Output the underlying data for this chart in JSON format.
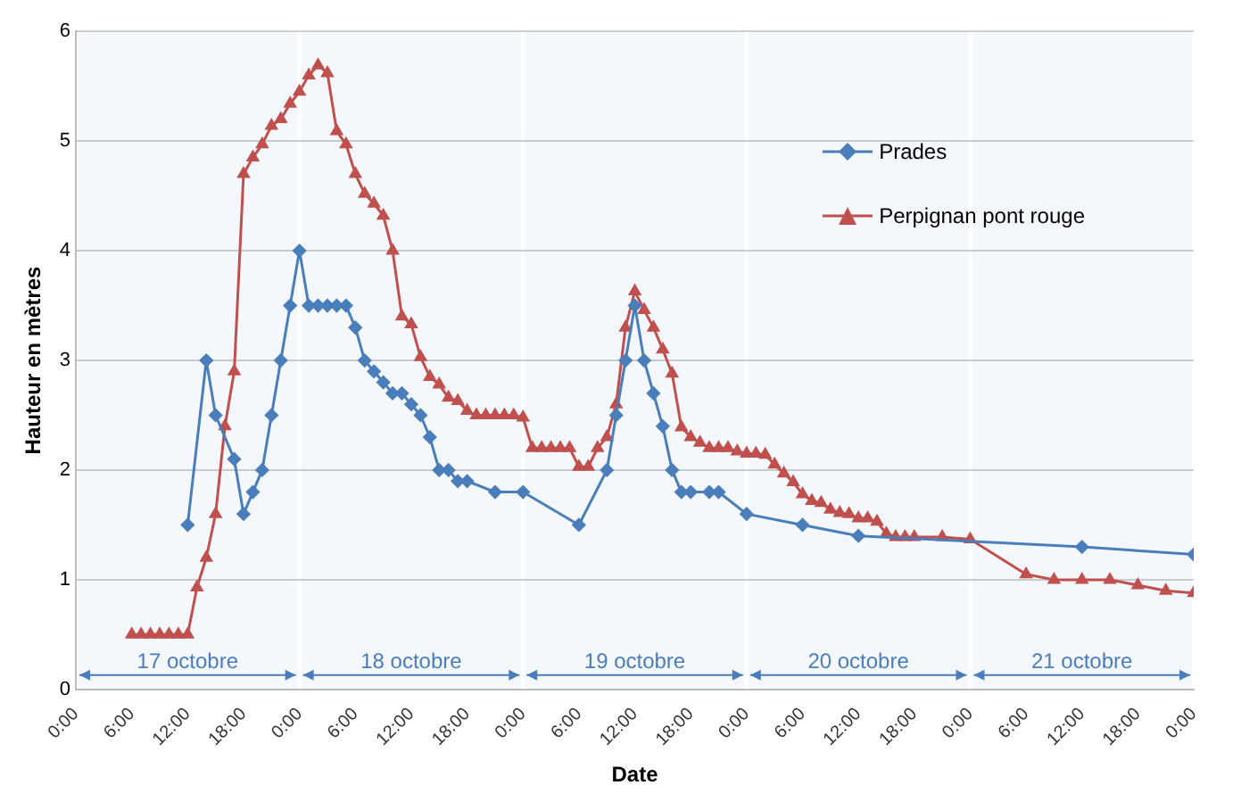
{
  "chart_data": {
    "type": "line",
    "xlabel": "Date",
    "ylabel": "Hauteur en mètres",
    "xlim": [
      "--10-17T00:00",
      "--10-22T00:00"
    ],
    "xticks": [
      {
        "value": "--10-17T00:00",
        "label": "0:00"
      },
      {
        "value": "--10-17T06:00",
        "label": "6:00"
      },
      {
        "value": "--10-17T12:00",
        "label": "12:00"
      },
      {
        "value": "--10-17T18:00",
        "label": "18:00"
      },
      {
        "value": "--10-18T00:00",
        "label": "0:00"
      },
      {
        "value": "--10-18T06:00",
        "label": "6:00"
      },
      {
        "value": "--10-18T12:00",
        "label": "12:00"
      },
      {
        "value": "--10-18T18:00",
        "label": "18:00"
      },
      {
        "value": "--10-19T00:00",
        "label": "0:00"
      },
      {
        "value": "--10-19T06:00",
        "label": "6:00"
      },
      {
        "value": "--10-19T12:00",
        "label": "12:00"
      },
      {
        "value": "--10-19T18:00",
        "label": "18:00"
      },
      {
        "value": "--10-20T00:00",
        "label": "0:00"
      },
      {
        "value": "--10-20T06:00",
        "label": "6:00"
      },
      {
        "value": "--10-20T12:00",
        "label": "12:00"
      },
      {
        "value": "--10-20T18:00",
        "label": "18:00"
      },
      {
        "value": "--10-21T00:00",
        "label": "0:00"
      },
      {
        "value": "--10-21T06:00",
        "label": "6:00"
      },
      {
        "value": "--10-21T12:00",
        "label": "12:00"
      },
      {
        "value": "--10-21T18:00",
        "label": "18:00"
      },
      {
        "value": "--10-22T00:00",
        "label": "0:00"
      }
    ],
    "ylim": [
      0,
      6
    ],
    "yticks": [
      0,
      1,
      2,
      3,
      4,
      5,
      6
    ],
    "grid": "y",
    "legend": "top right",
    "series": [
      {
        "name": "Prades",
        "color": "#4a7ebb",
        "marker": "diamond",
        "x": [
          "--10-17T12:00",
          "--10-17T14:00",
          "--10-17T15:00",
          "--10-17T17:00",
          "--10-17T18:00",
          "--10-17T19:00",
          "--10-17T20:00",
          "--10-17T21:00",
          "--10-17T22:00",
          "--10-17T23:00",
          "--10-18T00:00",
          "--10-18T01:00",
          "--10-18T02:00",
          "--10-18T03:00",
          "--10-18T04:00",
          "--10-18T05:00",
          "--10-18T06:00",
          "--10-18T07:00",
          "--10-18T08:00",
          "--10-18T09:00",
          "--10-18T10:00",
          "--10-18T11:00",
          "--10-18T12:00",
          "--10-18T13:00",
          "--10-18T14:00",
          "--10-18T15:00",
          "--10-18T16:00",
          "--10-18T17:00",
          "--10-18T18:00",
          "--10-18T21:00",
          "--10-19T00:00",
          "--10-19T06:00",
          "--10-19T09:00",
          "--10-19T10:00",
          "--10-19T11:00",
          "--10-19T12:00",
          "--10-19T13:00",
          "--10-19T14:00",
          "--10-19T15:00",
          "--10-19T16:00",
          "--10-19T17:00",
          "--10-19T18:00",
          "--10-19T20:00",
          "--10-19T21:00",
          "--10-20T00:00",
          "--10-20T06:00",
          "--10-20T12:00",
          "--10-21T12:00",
          "--10-22T00:00"
        ],
        "values": [
          1.5,
          3.0,
          2.5,
          2.1,
          1.6,
          1.8,
          2.0,
          2.5,
          3.0,
          3.5,
          4.0,
          3.5,
          3.5,
          3.5,
          3.5,
          3.5,
          3.3,
          3.0,
          2.9,
          2.8,
          2.7,
          2.7,
          2.6,
          2.5,
          2.3,
          2.0,
          2.0,
          1.9,
          1.9,
          1.8,
          1.8,
          1.5,
          2.0,
          2.5,
          3.0,
          3.5,
          3.0,
          2.7,
          2.4,
          2.0,
          1.8,
          1.8,
          1.8,
          1.8,
          1.6,
          1.5,
          1.4,
          1.3,
          1.23
        ]
      },
      {
        "name": "Perpignan pont rouge",
        "color": "#c0504d",
        "marker": "triangle",
        "x": [
          "--10-17T06:00",
          "--10-17T07:00",
          "--10-17T08:00",
          "--10-17T09:00",
          "--10-17T10:00",
          "--10-17T11:00",
          "--10-17T12:00",
          "--10-17T13:00",
          "--10-17T14:00",
          "--10-17T15:00",
          "--10-17T16:00",
          "--10-17T17:00",
          "--10-17T18:00",
          "--10-17T19:00",
          "--10-17T20:00",
          "--10-17T21:00",
          "--10-17T22:00",
          "--10-17T23:00",
          "--10-18T00:00",
          "--10-18T01:00",
          "--10-18T02:00",
          "--10-18T03:00",
          "--10-18T04:00",
          "--10-18T05:00",
          "--10-18T06:00",
          "--10-18T07:00",
          "--10-18T08:00",
          "--10-18T09:00",
          "--10-18T10:00",
          "--10-18T11:00",
          "--10-18T12:00",
          "--10-18T13:00",
          "--10-18T14:00",
          "--10-18T15:00",
          "--10-18T16:00",
          "--10-18T17:00",
          "--10-18T18:00",
          "--10-18T19:00",
          "--10-18T20:00",
          "--10-18T21:00",
          "--10-18T22:00",
          "--10-18T23:00",
          "--10-19T00:00",
          "--10-19T01:00",
          "--10-19T02:00",
          "--10-19T03:00",
          "--10-19T04:00",
          "--10-19T05:00",
          "--10-19T06:00",
          "--10-19T07:00",
          "--10-19T08:00",
          "--10-19T09:00",
          "--10-19T10:00",
          "--10-19T11:00",
          "--10-19T12:00",
          "--10-19T13:00",
          "--10-19T14:00",
          "--10-19T15:00",
          "--10-19T16:00",
          "--10-19T17:00",
          "--10-19T18:00",
          "--10-19T19:00",
          "--10-19T20:00",
          "--10-19T21:00",
          "--10-19T22:00",
          "--10-19T23:00",
          "--10-20T00:00",
          "--10-20T01:00",
          "--10-20T02:00",
          "--10-20T03:00",
          "--10-20T04:00",
          "--10-20T05:00",
          "--10-20T06:00",
          "--10-20T07:00",
          "--10-20T08:00",
          "--10-20T09:00",
          "--10-20T10:00",
          "--10-20T11:00",
          "--10-20T12:00",
          "--10-20T13:00",
          "--10-20T14:00",
          "--10-20T15:00",
          "--10-20T16:00",
          "--10-20T17:00",
          "--10-20T18:00",
          "--10-20T21:00",
          "--10-21T00:00",
          "--10-21T06:00",
          "--10-21T09:00",
          "--10-21T12:00",
          "--10-21T15:00",
          "--10-21T18:00",
          "--10-21T21:00",
          "--10-22T00:00"
        ],
        "values": [
          0.5,
          0.5,
          0.5,
          0.5,
          0.5,
          0.5,
          0.5,
          0.93,
          1.2,
          1.6,
          2.4,
          2.9,
          4.7,
          4.85,
          4.97,
          5.14,
          5.2,
          5.34,
          5.45,
          5.6,
          5.69,
          5.62,
          5.09,
          4.97,
          4.7,
          4.52,
          4.43,
          4.32,
          4.0,
          3.4,
          3.33,
          3.03,
          2.85,
          2.78,
          2.66,
          2.63,
          2.54,
          2.5,
          2.5,
          2.5,
          2.5,
          2.5,
          2.48,
          2.2,
          2.2,
          2.2,
          2.2,
          2.2,
          2.03,
          2.03,
          2.2,
          2.3,
          2.6,
          3.3,
          3.63,
          3.46,
          3.3,
          3.1,
          2.88,
          2.39,
          2.3,
          2.25,
          2.2,
          2.2,
          2.2,
          2.17,
          2.15,
          2.15,
          2.14,
          2.05,
          1.97,
          1.89,
          1.78,
          1.72,
          1.7,
          1.64,
          1.61,
          1.6,
          1.56,
          1.56,
          1.53,
          1.42,
          1.39,
          1.39,
          1.39,
          1.39,
          1.37,
          1.05,
          1.0,
          1.0,
          1.0,
          0.95,
          0.9,
          0.88
        ]
      }
    ],
    "bands": [
      {
        "axis": "x",
        "from": "--10-17T00:00",
        "to": "--10-18T00:00",
        "label": "17 octobre",
        "color": "#4a7ebb"
      },
      {
        "axis": "x",
        "from": "--10-18T00:00",
        "to": "--10-19T00:00",
        "label": "18 octobre",
        "color": "#4a7ebb"
      },
      {
        "axis": "x",
        "from": "--10-19T00:00",
        "to": "--10-20T00:00",
        "label": "19 octobre",
        "color": "#4a7ebb"
      },
      {
        "axis": "x",
        "from": "--10-20T00:00",
        "to": "--10-21T00:00",
        "label": "20 octobre",
        "color": "#4a7ebb"
      },
      {
        "axis": "x",
        "from": "--10-21T00:00",
        "to": "--10-22T00:00",
        "label": "21 octobre",
        "color": "#4a7ebb"
      }
    ]
  }
}
